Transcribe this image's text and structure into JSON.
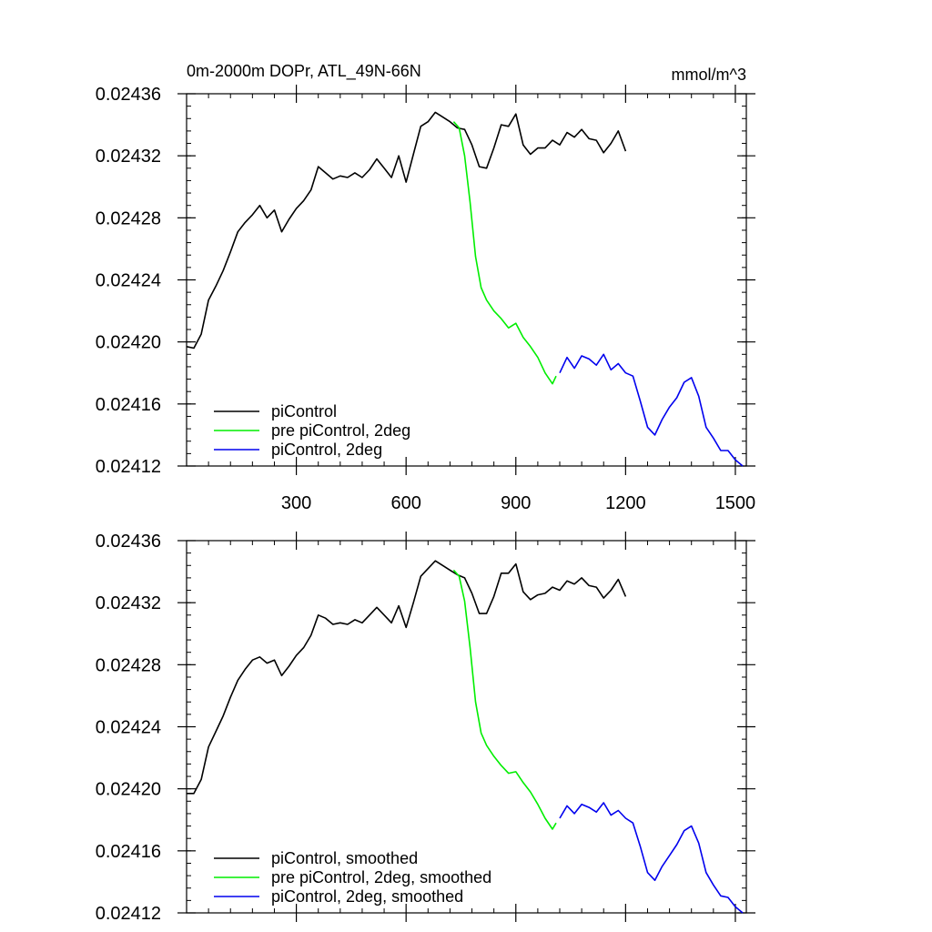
{
  "title_left": "0m-2000m DOPr, ATL_49N-66N",
  "title_right": "mmol/m^3",
  "colors": {
    "black": "#000000",
    "green": "#00ee00",
    "blue": "#0000ee"
  },
  "chart_data": [
    {
      "type": "line",
      "title": "0m-2000m DOPr, ATL_49N-66N",
      "unit": "mmol/m^3",
      "xlim": [
        0,
        1530
      ],
      "ylim": [
        0.02412,
        0.02436
      ],
      "xticks": [
        300,
        600,
        900,
        1200,
        1500
      ],
      "xtick_labels": [
        "300",
        "600",
        "900",
        "1200",
        "1500"
      ],
      "yticks": [
        0.02412,
        0.02416,
        0.0242,
        0.02424,
        0.02428,
        0.02432,
        0.02436
      ],
      "ytick_labels": [
        "0.02412",
        "0.02416",
        "0.02420",
        "0.02424",
        "0.02428",
        "0.02432",
        "0.02436"
      ],
      "grid": false,
      "legend_position": "bottom-left",
      "series": [
        {
          "name": "piControl",
          "color": "#000000",
          "points": [
            [
              0,
              0.024197
            ],
            [
              20,
              0.024196
            ],
            [
              40,
              0.024205
            ],
            [
              60,
              0.024227
            ],
            [
              80,
              0.024236
            ],
            [
              100,
              0.024246
            ],
            [
              120,
              0.024258
            ],
            [
              140,
              0.024271
            ],
            [
              160,
              0.024277
            ],
            [
              180,
              0.024282
            ],
            [
              200,
              0.024288
            ],
            [
              220,
              0.02428
            ],
            [
              240,
              0.024285
            ],
            [
              260,
              0.024271
            ],
            [
              280,
              0.024279
            ],
            [
              300,
              0.024286
            ],
            [
              320,
              0.024291
            ],
            [
              340,
              0.024298
            ],
            [
              360,
              0.024313
            ],
            [
              380,
              0.024309
            ],
            [
              400,
              0.024305
            ],
            [
              420,
              0.024307
            ],
            [
              440,
              0.024306
            ],
            [
              460,
              0.024309
            ],
            [
              480,
              0.024306
            ],
            [
              500,
              0.024311
            ],
            [
              520,
              0.024318
            ],
            [
              540,
              0.024312
            ],
            [
              560,
              0.024306
            ],
            [
              580,
              0.02432
            ],
            [
              600,
              0.024303
            ],
            [
              620,
              0.024321
            ],
            [
              640,
              0.024339
            ],
            [
              660,
              0.024342
            ],
            [
              680,
              0.024348
            ],
            [
              700,
              0.024345
            ],
            [
              720,
              0.024342
            ],
            [
              740,
              0.024338
            ],
            [
              760,
              0.024337
            ],
            [
              780,
              0.024327
            ],
            [
              800,
              0.024313
            ],
            [
              820,
              0.024312
            ],
            [
              840,
              0.024325
            ],
            [
              860,
              0.02434
            ],
            [
              880,
              0.024339
            ],
            [
              900,
              0.024347
            ],
            [
              920,
              0.024327
            ],
            [
              940,
              0.024321
            ],
            [
              960,
              0.024325
            ],
            [
              980,
              0.024325
            ],
            [
              1000,
              0.02433
            ],
            [
              1020,
              0.024327
            ],
            [
              1040,
              0.024335
            ],
            [
              1060,
              0.024332
            ],
            [
              1080,
              0.024337
            ],
            [
              1100,
              0.024331
            ],
            [
              1120,
              0.02433
            ],
            [
              1140,
              0.024322
            ],
            [
              1160,
              0.024328
            ],
            [
              1180,
              0.024336
            ],
            [
              1200,
              0.024323
            ]
          ]
        },
        {
          "name": "pre piControl, 2deg",
          "color": "#00ee00",
          "points": [
            [
              730,
              0.024342
            ],
            [
              745,
              0.024338
            ],
            [
              760,
              0.02432
            ],
            [
              775,
              0.02429
            ],
            [
              790,
              0.024255
            ],
            [
              805,
              0.024235
            ],
            [
              820,
              0.024227
            ],
            [
              840,
              0.02422
            ],
            [
              860,
              0.024215
            ],
            [
              880,
              0.024209
            ],
            [
              900,
              0.024212
            ],
            [
              920,
              0.024203
            ],
            [
              940,
              0.024197
            ],
            [
              960,
              0.02419
            ],
            [
              980,
              0.02418
            ],
            [
              1000,
              0.024173
            ],
            [
              1010,
              0.024178
            ]
          ]
        },
        {
          "name": "piControl, 2deg",
          "color": "#0000ee",
          "points": [
            [
              1020,
              0.02418
            ],
            [
              1040,
              0.02419
            ],
            [
              1060,
              0.024183
            ],
            [
              1080,
              0.024191
            ],
            [
              1100,
              0.024189
            ],
            [
              1120,
              0.024185
            ],
            [
              1140,
              0.024192
            ],
            [
              1160,
              0.024182
            ],
            [
              1180,
              0.024186
            ],
            [
              1200,
              0.02418
            ],
            [
              1220,
              0.024178
            ],
            [
              1240,
              0.024162
            ],
            [
              1260,
              0.024145
            ],
            [
              1280,
              0.02414
            ],
            [
              1300,
              0.02415
            ],
            [
              1320,
              0.024158
            ],
            [
              1340,
              0.024164
            ],
            [
              1360,
              0.024174
            ],
            [
              1380,
              0.024177
            ],
            [
              1400,
              0.024165
            ],
            [
              1420,
              0.024145
            ],
            [
              1440,
              0.024138
            ],
            [
              1460,
              0.02413
            ],
            [
              1480,
              0.02413
            ],
            [
              1500,
              0.024124
            ],
            [
              1520,
              0.02412
            ]
          ]
        }
      ]
    },
    {
      "type": "line",
      "xlim": [
        0,
        1530
      ],
      "ylim": [
        0.02412,
        0.02436
      ],
      "xticks": [
        300,
        600,
        900,
        1200,
        1500
      ],
      "yticks": [
        0.02412,
        0.02416,
        0.0242,
        0.02424,
        0.02428,
        0.02432,
        0.02436
      ],
      "ytick_labels": [
        "0.02412",
        "0.02416",
        "0.02420",
        "0.02424",
        "0.02428",
        "0.02432",
        "0.02436"
      ],
      "grid": false,
      "legend_position": "bottom-left",
      "series": [
        {
          "name": "piControl, smoothed",
          "color": "#000000",
          "points": [
            [
              0,
              0.024197
            ],
            [
              20,
              0.024197
            ],
            [
              40,
              0.024206
            ],
            [
              60,
              0.024227
            ],
            [
              80,
              0.024237
            ],
            [
              100,
              0.024247
            ],
            [
              120,
              0.024259
            ],
            [
              140,
              0.02427
            ],
            [
              160,
              0.024277
            ],
            [
              180,
              0.024283
            ],
            [
              200,
              0.024285
            ],
            [
              220,
              0.024281
            ],
            [
              240,
              0.024283
            ],
            [
              260,
              0.024273
            ],
            [
              280,
              0.024279
            ],
            [
              300,
              0.024286
            ],
            [
              320,
              0.024291
            ],
            [
              340,
              0.024299
            ],
            [
              360,
              0.024312
            ],
            [
              380,
              0.02431
            ],
            [
              400,
              0.024306
            ],
            [
              420,
              0.024307
            ],
            [
              440,
              0.024306
            ],
            [
              460,
              0.024309
            ],
            [
              480,
              0.024307
            ],
            [
              500,
              0.024312
            ],
            [
              520,
              0.024317
            ],
            [
              540,
              0.024312
            ],
            [
              560,
              0.024307
            ],
            [
              580,
              0.024318
            ],
            [
              600,
              0.024304
            ],
            [
              620,
              0.02432
            ],
            [
              640,
              0.024337
            ],
            [
              660,
              0.024342
            ],
            [
              680,
              0.024347
            ],
            [
              700,
              0.024344
            ],
            [
              720,
              0.024341
            ],
            [
              740,
              0.024338
            ],
            [
              760,
              0.024336
            ],
            [
              780,
              0.024326
            ],
            [
              800,
              0.024313
            ],
            [
              820,
              0.024313
            ],
            [
              840,
              0.024324
            ],
            [
              860,
              0.024339
            ],
            [
              880,
              0.024339
            ],
            [
              900,
              0.024345
            ],
            [
              920,
              0.024327
            ],
            [
              940,
              0.024322
            ],
            [
              960,
              0.024325
            ],
            [
              980,
              0.024326
            ],
            [
              1000,
              0.02433
            ],
            [
              1020,
              0.024328
            ],
            [
              1040,
              0.024334
            ],
            [
              1060,
              0.024332
            ],
            [
              1080,
              0.024336
            ],
            [
              1100,
              0.024331
            ],
            [
              1120,
              0.02433
            ],
            [
              1140,
              0.024323
            ],
            [
              1160,
              0.024328
            ],
            [
              1180,
              0.024335
            ],
            [
              1200,
              0.024324
            ]
          ]
        },
        {
          "name": "pre piControl, 2deg, smoothed",
          "color": "#00ee00",
          "points": [
            [
              730,
              0.024341
            ],
            [
              745,
              0.024337
            ],
            [
              760,
              0.024321
            ],
            [
              775,
              0.024291
            ],
            [
              790,
              0.024256
            ],
            [
              805,
              0.024236
            ],
            [
              820,
              0.024228
            ],
            [
              840,
              0.024221
            ],
            [
              860,
              0.024215
            ],
            [
              880,
              0.02421
            ],
            [
              900,
              0.024211
            ],
            [
              920,
              0.024204
            ],
            [
              940,
              0.024198
            ],
            [
              960,
              0.02419
            ],
            [
              980,
              0.024181
            ],
            [
              1000,
              0.024174
            ],
            [
              1010,
              0.024178
            ]
          ]
        },
        {
          "name": "piControl, 2deg, smoothed",
          "color": "#0000ee",
          "points": [
            [
              1020,
              0.024181
            ],
            [
              1040,
              0.024189
            ],
            [
              1060,
              0.024184
            ],
            [
              1080,
              0.02419
            ],
            [
              1100,
              0.024188
            ],
            [
              1120,
              0.024185
            ],
            [
              1140,
              0.024191
            ],
            [
              1160,
              0.024183
            ],
            [
              1180,
              0.024186
            ],
            [
              1200,
              0.024181
            ],
            [
              1220,
              0.024178
            ],
            [
              1240,
              0.024163
            ],
            [
              1260,
              0.024146
            ],
            [
              1280,
              0.024141
            ],
            [
              1300,
              0.02415
            ],
            [
              1320,
              0.024157
            ],
            [
              1340,
              0.024164
            ],
            [
              1360,
              0.024173
            ],
            [
              1380,
              0.024176
            ],
            [
              1400,
              0.024165
            ],
            [
              1420,
              0.024146
            ],
            [
              1440,
              0.024138
            ],
            [
              1460,
              0.024131
            ],
            [
              1480,
              0.02413
            ],
            [
              1500,
              0.024124
            ],
            [
              1520,
              0.02412
            ]
          ]
        }
      ]
    }
  ]
}
